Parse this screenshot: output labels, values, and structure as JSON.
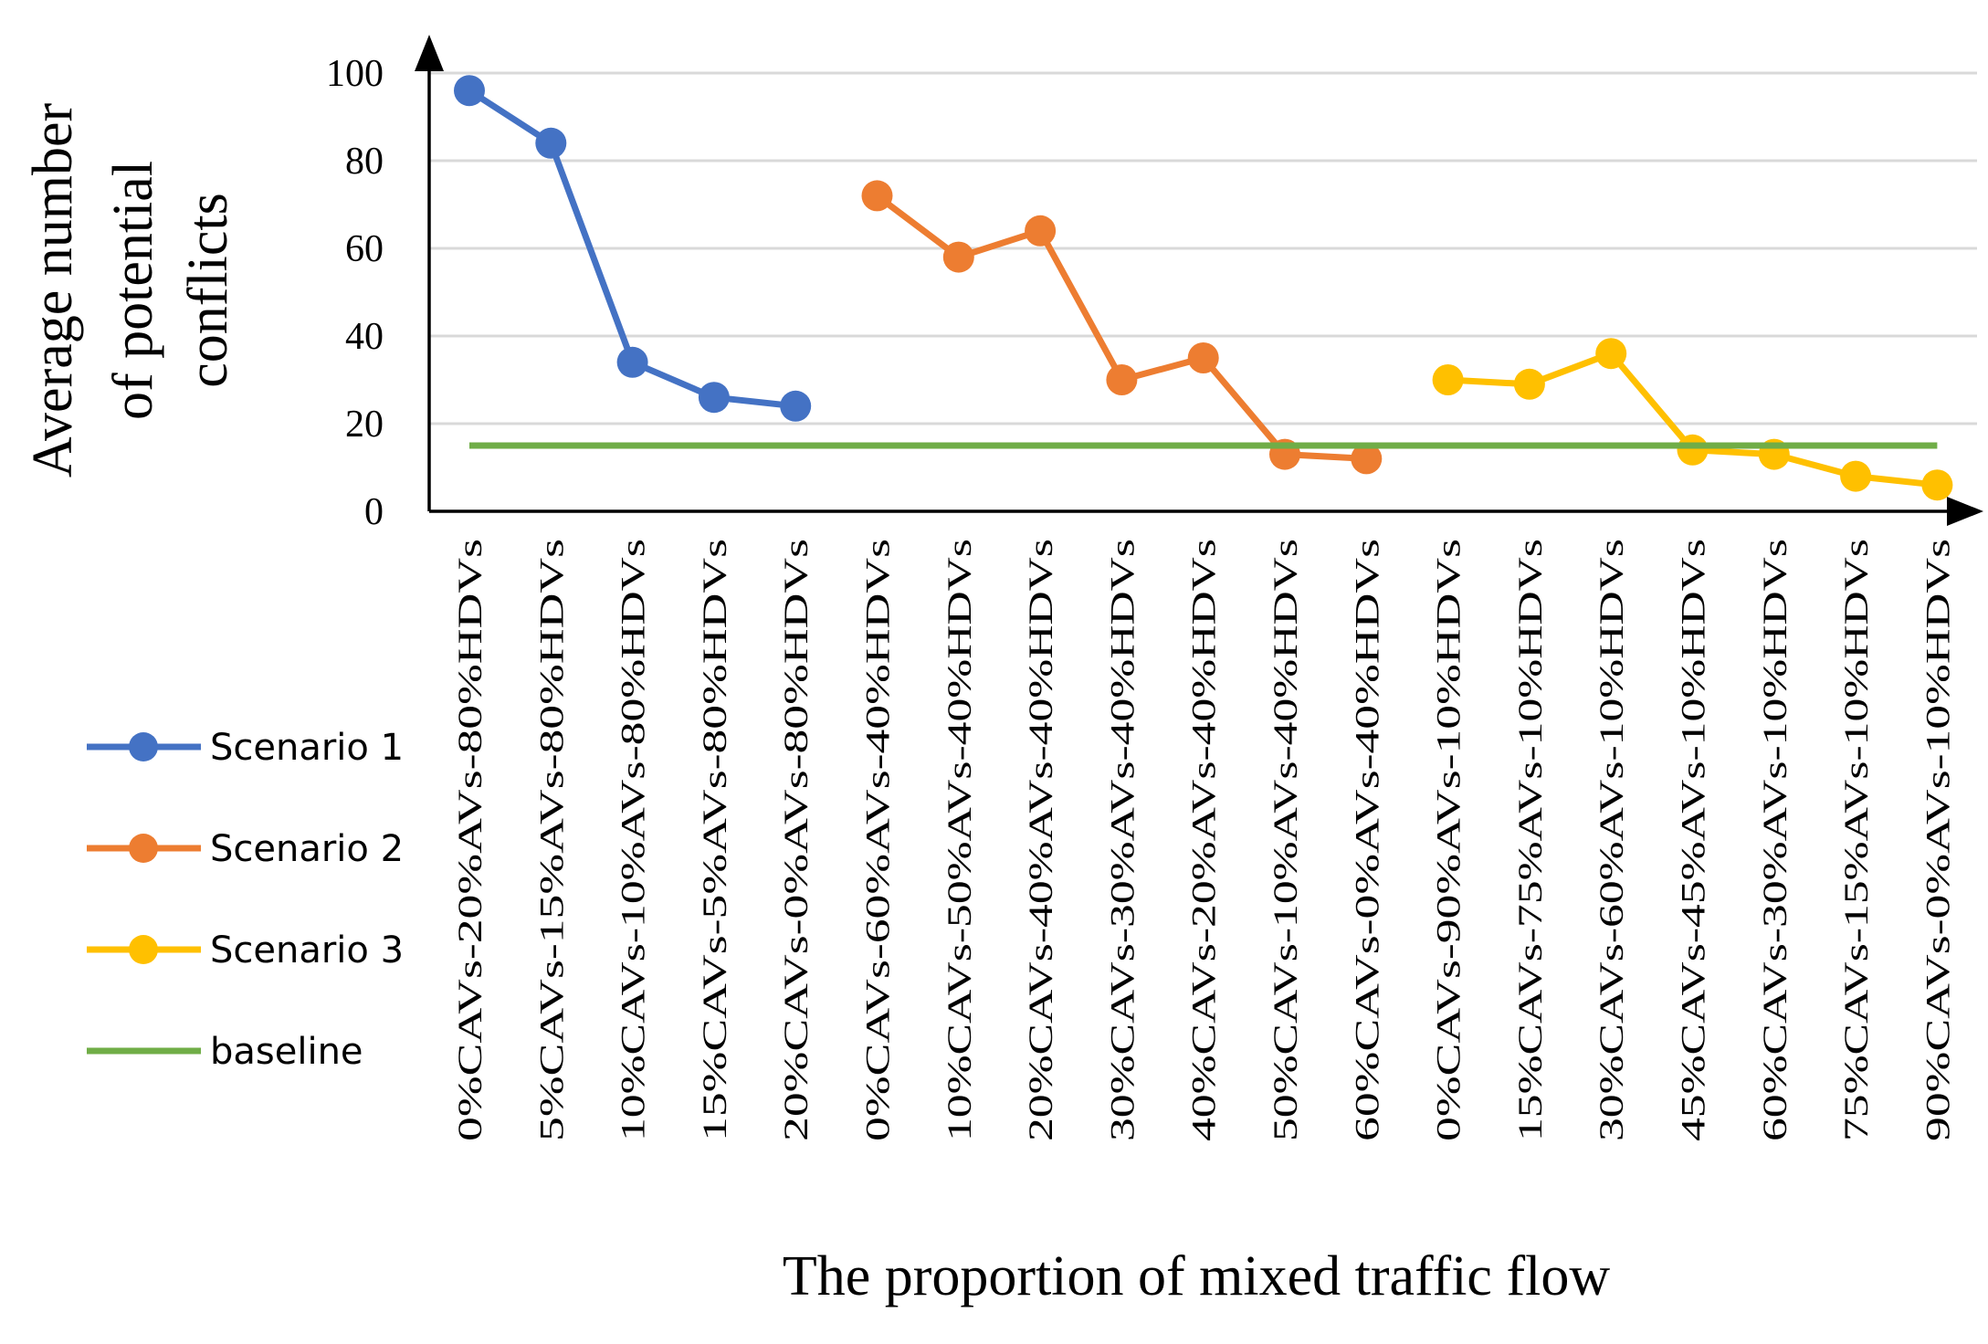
{
  "chart_data": {
    "type": "line",
    "title": "",
    "xlabel": "The proportion of mixed traffic flow",
    "ylabel_lines": [
      "Average number",
      "of potential",
      "conflicts"
    ],
    "ylim": [
      0,
      100
    ],
    "yticks": [
      0,
      20,
      40,
      60,
      80,
      100
    ],
    "grid": true,
    "legend_position": "left-below-axis",
    "categories": [
      "0%CAVs-20%AVs-80%HDVs",
      "5%CAVs-15%AVs-80%HDVs",
      "10%CAVs-10%AVs-80%HDVs",
      "15%CAVs-5%AVs-80%HDVs",
      "20%CAVs-0%AVs-80%HDVs",
      "0%CAVs-60%AVs-40%HDVs",
      "10%CAVs-50%AVs-40%HDVs",
      "20%CAVs-40%AVs-40%HDVs",
      "30%CAVs-30%AVs-40%HDVs",
      "40%CAVs-20%AVs-40%HDVs",
      "50%CAVs-10%AVs-40%HDVs",
      "60%CAVs-0%AVs-40%HDVs",
      "0%CAVs-90%AVs-10%HDVs",
      "15%CAVs-75%AVs-10%HDVs",
      "30%CAVs-60%AVs-10%HDVs",
      "45%CAVs-45%AVs-10%HDVs",
      "60%CAVs-30%AVs-10%HDVs",
      "75%CAVs-15%AVs-10%HDVs",
      "90%CAVs-0%AVs-10%HDVs"
    ],
    "series": [
      {
        "name": "Scenario 1",
        "color": "#4472C4",
        "values": [
          96,
          84,
          34,
          26,
          24,
          null,
          null,
          null,
          null,
          null,
          null,
          null,
          null,
          null,
          null,
          null,
          null,
          null,
          null
        ]
      },
      {
        "name": "Scenario 2",
        "color": "#ED7D31",
        "values": [
          null,
          null,
          null,
          null,
          null,
          72,
          58,
          64,
          30,
          35,
          13,
          12,
          null,
          null,
          null,
          null,
          null,
          null,
          null
        ]
      },
      {
        "name": "Scenario 3",
        "color": "#FFC000",
        "values": [
          null,
          null,
          null,
          null,
          null,
          null,
          null,
          null,
          null,
          null,
          null,
          null,
          30,
          29,
          36,
          14,
          13,
          8,
          6
        ]
      },
      {
        "name": "baseline",
        "color": "#70AD47",
        "values": [
          15,
          15,
          15,
          15,
          15,
          15,
          15,
          15,
          15,
          15,
          15,
          15,
          15,
          15,
          15,
          15,
          15,
          15,
          15
        ],
        "markers": false
      }
    ]
  }
}
